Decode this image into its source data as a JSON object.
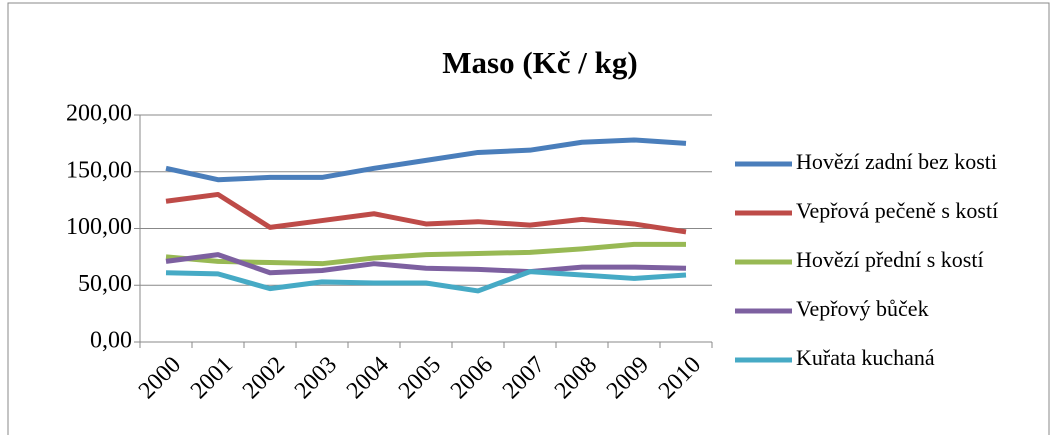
{
  "chart_data": {
    "type": "line",
    "title": "Maso (Kč / kg)",
    "categories": [
      "2000",
      "2001",
      "2002",
      "2003",
      "2004",
      "2005",
      "2006",
      "2007",
      "2008",
      "2009",
      "2010"
    ],
    "series": [
      {
        "name": "Hovězí zadní bez kosti",
        "color": "#4a7ebb",
        "values": [
          153,
          143,
          145,
          145,
          153,
          160,
          167,
          169,
          176,
          178,
          175
        ]
      },
      {
        "name": "Vepřová pečeně s kostí",
        "color": "#be4b48",
        "values": [
          124,
          130,
          101,
          107,
          113,
          104,
          106,
          103,
          108,
          104,
          97
        ]
      },
      {
        "name": "Hovězí přední s kostí",
        "color": "#98b954",
        "values": [
          75,
          71,
          70,
          69,
          74,
          77,
          78,
          79,
          82,
          86,
          86
        ]
      },
      {
        "name": "Vepřový bůček",
        "color": "#7d60a0",
        "values": [
          71,
          77,
          61,
          63,
          69,
          65,
          64,
          62,
          66,
          66,
          65
        ]
      },
      {
        "name": "Kuřata kuchaná",
        "color": "#46aac5",
        "values": [
          61,
          60,
          47,
          53,
          52,
          52,
          45,
          62,
          59,
          56,
          59
        ]
      }
    ],
    "ylim": [
      0,
      200
    ],
    "yticks": [
      {
        "value": 0,
        "label": "0,00"
      },
      {
        "value": 50,
        "label": "50,00"
      },
      {
        "value": 100,
        "label": "100,00"
      },
      {
        "value": 150,
        "label": "150,00"
      },
      {
        "value": 200,
        "label": "200,00"
      }
    ],
    "grid": true,
    "legend": "right"
  }
}
